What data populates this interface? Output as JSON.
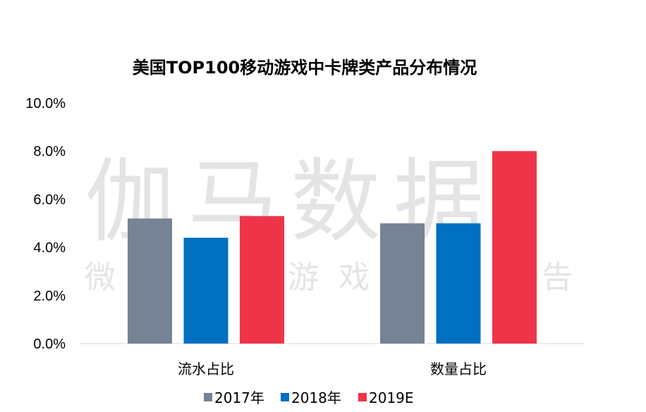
{
  "chart_data": {
    "type": "bar",
    "title": "美国TOP100移动游戏中卡牌类产品分布情况",
    "categories": [
      "流水占比",
      "数量占比"
    ],
    "series": [
      {
        "name": "2017年",
        "color": "#768395",
        "values": [
          5.2,
          5.0
        ]
      },
      {
        "name": "2018年",
        "color": "#0070C0",
        "values": [
          4.4,
          5.0
        ]
      },
      {
        "name": "2019E",
        "color": "#EE3448",
        "values": [
          5.3,
          8.0
        ]
      }
    ],
    "yticks": [
      "0.0%",
      "2.0%",
      "4.0%",
      "6.0%",
      "8.0%",
      "10.0%"
    ],
    "ylim": [
      0,
      10
    ],
    "yunit": "%",
    "grid": false,
    "legend": "bottom"
  },
  "watermark": {
    "main": "伽马数据",
    "sub": "微信号：游戏产业报告"
  }
}
